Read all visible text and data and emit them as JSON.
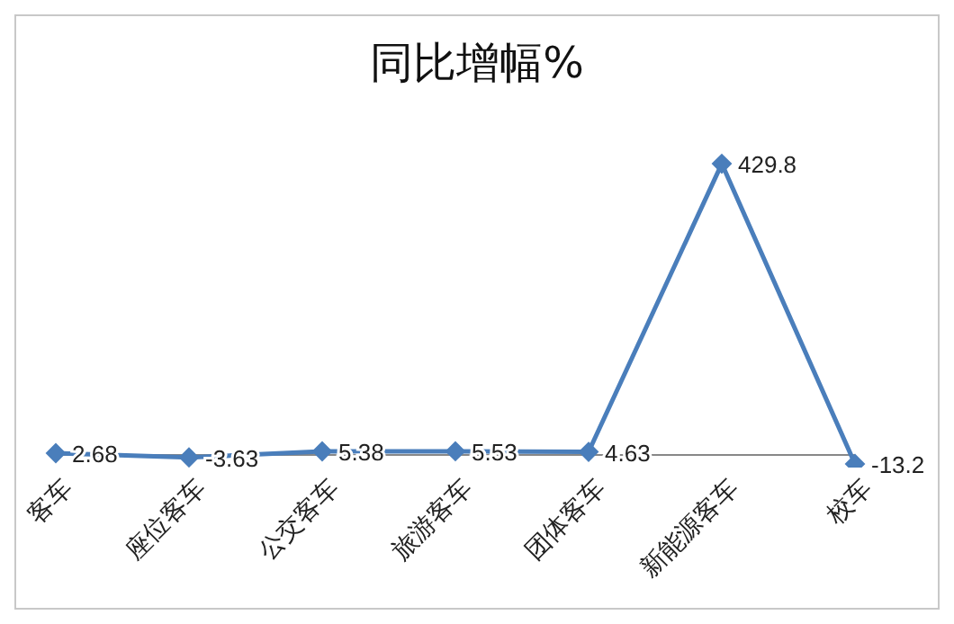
{
  "chart_data": {
    "type": "line",
    "title": "同比增幅%",
    "categories": [
      "客车",
      "座位客车",
      "公交客车",
      "旅游客车",
      "团体客车",
      "新能源客车",
      "校车"
    ],
    "series": [
      {
        "color": "#4a7ebb",
        "values": [
          2.68,
          -3.63,
          5.38,
          5.53,
          4.63,
          429.8,
          -13.2
        ]
      }
    ],
    "data_labels": true,
    "marker": "diamond"
  }
}
